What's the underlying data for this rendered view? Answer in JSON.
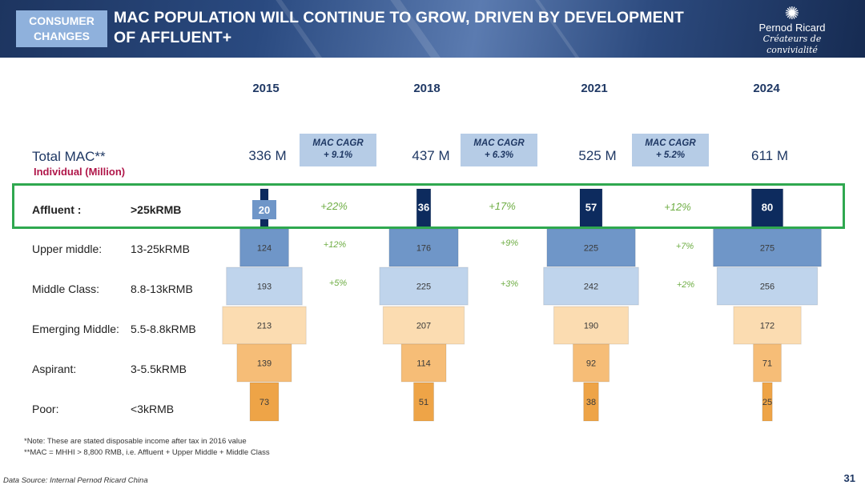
{
  "header": {
    "tag": "CONSUMER CHANGES",
    "title": "MAC POPULATION WILL CONTINUE TO GROW, DRIVEN BY DEVELOPMENT OF AFFLUENT+",
    "logo_name": "Pernod Ricard",
    "logo_tagline": "Créateurs de convivialité"
  },
  "totals": {
    "label": "Total MAC**",
    "sublabel": "Individual (Million)"
  },
  "chart_data": {
    "type": "bar",
    "title": "MAC POPULATION WILL CONTINUE TO GROW, DRIVEN BY DEVELOPMENT OF AFFLUENT+",
    "ylabel": "Individual (Million)",
    "years": [
      "2015",
      "2018",
      "2021",
      "2024"
    ],
    "total_mac": [
      "336 M",
      "437 M",
      "525 M",
      "611 M"
    ],
    "cagr": [
      {
        "title": "MAC CAGR",
        "value": "+ 9.1%"
      },
      {
        "title": "MAC CAGR",
        "value": "+ 6.3%"
      },
      {
        "title": "MAC CAGR",
        "value": "+ 5.2%"
      }
    ],
    "segments": [
      {
        "name": "Affluent :",
        "range": ">25kRMB",
        "color": "#0d2b5e",
        "values": [
          20,
          36,
          57,
          80
        ],
        "growth": [
          "+22%",
          "+17%",
          "+12%"
        ]
      },
      {
        "name": "Upper middle:",
        "range": "13-25kRMB",
        "color": "#6f96c8",
        "values": [
          124,
          176,
          225,
          275
        ],
        "growth": [
          "+12%",
          "+9%",
          "+7%"
        ]
      },
      {
        "name": "Middle Class:",
        "range": "8.8-13kRMB",
        "color": "#bfd4ec",
        "values": [
          193,
          225,
          242,
          256
        ],
        "growth": [
          "+5%",
          "+3%",
          "+2%"
        ]
      },
      {
        "name": "Emerging Middle:",
        "range": "5.5-8.8kRMB",
        "color": "#fbdcb1",
        "values": [
          213,
          207,
          190,
          172
        ]
      },
      {
        "name": "Aspirant:",
        "range": "3-5.5kRMB",
        "color": "#f6bd77",
        "values": [
          139,
          114,
          92,
          71
        ]
      },
      {
        "name": "Poor:",
        "range": "<3kRMB",
        "color": "#eea447",
        "values": [
          73,
          51,
          38,
          25
        ]
      }
    ]
  },
  "footer": {
    "note1": "*Note: These are stated disposable income after tax in 2016 value",
    "note2": "**MAC = MHHI > 8,800 RMB, i.e. Affluent + Upper Middle + Middle Class",
    "source": "Data Source: Internal Pernod Ricard China",
    "page": "31"
  }
}
